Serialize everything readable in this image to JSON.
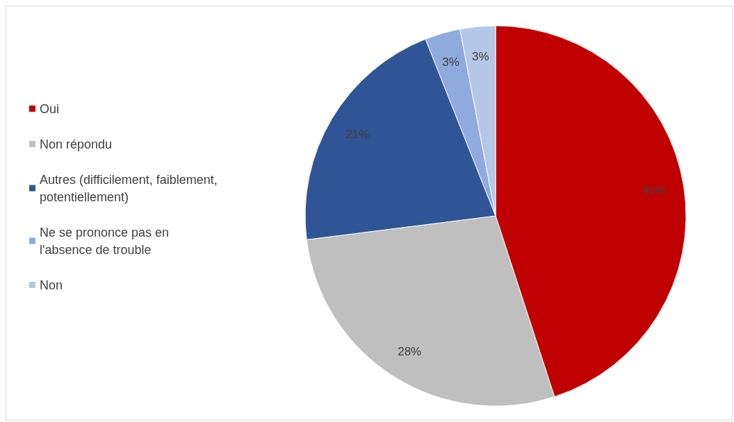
{
  "chart_data": {
    "type": "pie",
    "categories": [
      "Oui",
      "Non répondu",
      "Autres (difficilement, faiblement, potentiellement)",
      "Ne se prononce pas en l'absence de trouble",
      "Non"
    ],
    "values": [
      45,
      28,
      21,
      3,
      3
    ],
    "colors": [
      "#c00000",
      "#bfbfbf",
      "#2f5597",
      "#8faadc",
      "#b4c7e7"
    ],
    "value_labels": [
      "45%",
      "28%",
      "21%",
      "3%",
      "3%"
    ],
    "legend": "left"
  }
}
